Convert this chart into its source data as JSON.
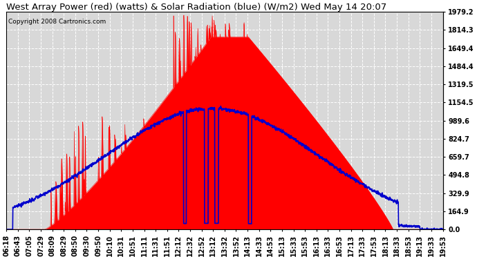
{
  "title": "West Array Power (red) (watts) & Solar Radiation (blue) (W/m2) Wed May 14 20:07",
  "copyright": "Copyright 2008 Cartronics.com",
  "y_ticks": [
    0.0,
    164.9,
    329.9,
    494.8,
    659.7,
    824.7,
    989.6,
    1154.5,
    1319.5,
    1484.4,
    1649.4,
    1814.3,
    1979.2
  ],
  "x_labels": [
    "06:18",
    "06:43",
    "07:05",
    "07:29",
    "08:09",
    "08:29",
    "08:50",
    "09:30",
    "09:50",
    "10:10",
    "10:31",
    "10:51",
    "11:11",
    "11:31",
    "11:51",
    "12:12",
    "12:32",
    "12:52",
    "13:12",
    "13:32",
    "13:52",
    "14:13",
    "14:33",
    "14:53",
    "15:13",
    "15:33",
    "15:53",
    "16:13",
    "16:33",
    "16:53",
    "17:13",
    "17:33",
    "17:53",
    "18:13",
    "18:33",
    "18:53",
    "19:13",
    "19:33",
    "19:53"
  ],
  "ylim": [
    0,
    1979.2
  ],
  "bg_color": "#ffffff",
  "plot_bg_color": "#d8d8d8",
  "grid_color": "#ffffff",
  "red_color": "#ff0000",
  "blue_color": "#0000cc",
  "title_fontsize": 9.5,
  "tick_fontsize": 7,
  "copyright_fontsize": 6.5
}
